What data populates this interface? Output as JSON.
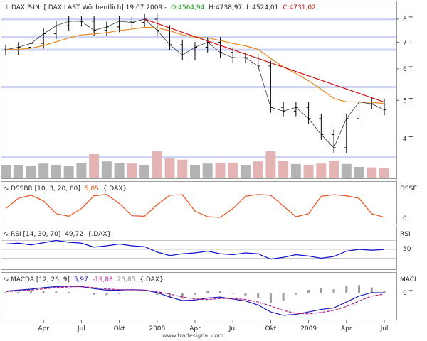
{
  "colors": {
    "price": "#000000",
    "sma": "#e8891e",
    "trend": "#cc1111",
    "ref_band": "#cfd3f5",
    "volume": "#b4b4b4",
    "volume_down": "#e4b4b4",
    "dssbr": "#e8501e",
    "rsi": "#1111cc",
    "macd_line": "#1a1ab4",
    "macd_signal": "#b41a8c",
    "macd_hist": "#9a9a9a",
    "header_open": "#1a9a1a",
    "header_close": "#cc1111",
    "header_dssbr_val": "#e8501e",
    "header_macd_val1": "#1a1ab4",
    "header_macd_val2": "#b41a8c",
    "header_macd_val3": "#888888"
  },
  "header": {
    "main": {
      "name": "DAX P-IN. [.DAX LAST Wöchentlich] 19.07.2009 -",
      "open": "O:4564,94",
      "high": "H:4738,97",
      "low": "L:4524,01",
      "close": "C:4731,02"
    },
    "dssbr": {
      "name": "DSSBR [10, 3, 20, 80]",
      "value": "5,85",
      "symbol": "{.DAX}"
    },
    "rsi": {
      "name": "RSI [14, 30, 70]",
      "value": "49,72",
      "symbol": "{.DAX}"
    },
    "macd": {
      "name": "MACDA [12, 26, 9]",
      "v1": "5,97",
      "v2": "-19,88",
      "v3": "25,85",
      "symbol": "{.DAX}"
    }
  },
  "right_labels": {
    "price_ticks": [
      "8 T",
      "7 T",
      "6 T",
      "5 T",
      "4 T"
    ],
    "dssbr": [
      "DSSE",
      "0"
    ],
    "rsi": [
      "RSI",
      "50"
    ],
    "macd": [
      "MACI",
      "0 T"
    ]
  },
  "x_axis": {
    "labels": [
      "Apr",
      "Jul",
      "Okt",
      "2008",
      "Apr",
      "Jul",
      "Okt",
      "2009",
      "Apr",
      "Jul"
    ]
  },
  "watermark": "www.tradesignal.com",
  "chart_data": [
    {
      "type": "line",
      "title": "DAX P-IN. [.DAX LAST Wöchentlich] 19.07.2009",
      "x": [
        "2007-01",
        "2007-02",
        "2007-03",
        "2007-04",
        "2007-05",
        "2007-06",
        "2007-07",
        "2007-08",
        "2007-09",
        "2007-10",
        "2007-11",
        "2007-12",
        "2008-01",
        "2008-02",
        "2008-03",
        "2008-04",
        "2008-05",
        "2008-06",
        "2008-07",
        "2008-08",
        "2008-09",
        "2008-10",
        "2008-11",
        "2008-12",
        "2009-01",
        "2009-02",
        "2009-03",
        "2009-04",
        "2009-05",
        "2009-06",
        "2009-07"
      ],
      "series": [
        {
          "name": "DAX",
          "values": [
            6700,
            6800,
            6950,
            7350,
            7700,
            7900,
            7900,
            7500,
            7650,
            7900,
            7850,
            8000,
            7500,
            6900,
            6500,
            6800,
            7000,
            6600,
            6400,
            6400,
            6100,
            4800,
            4700,
            4800,
            4500,
            4100,
            3800,
            4500,
            4950,
            4900,
            4731
          ]
        }
      ],
      "volume": [
        0.3,
        0.3,
        0.28,
        0.33,
        0.3,
        0.28,
        0.35,
        0.55,
        0.38,
        0.35,
        0.33,
        0.3,
        0.62,
        0.45,
        0.42,
        0.3,
        0.33,
        0.34,
        0.35,
        0.3,
        0.38,
        0.62,
        0.4,
        0.32,
        0.3,
        0.33,
        0.4,
        0.32,
        0.25,
        0.24,
        0.22
      ],
      "ylim": [
        3500,
        8300
      ],
      "y_log": true,
      "ticks": [
        8000,
        7000,
        6000,
        5000,
        4000
      ],
      "ref_levels": [
        8000,
        7200,
        6700,
        5400,
        3600
      ],
      "sma_label": "",
      "trend_from": [
        "2007-12",
        8000
      ],
      "trend_to": [
        "2009-07",
        4950
      ]
    },
    {
      "type": "line",
      "title": "DSSBR [10, 3, 20, 80]",
      "series": [
        {
          "name": "DSSBR",
          "values": [
            40,
            80,
            92,
            70,
            20,
            10,
            40,
            90,
            95,
            60,
            12,
            10,
            55,
            92,
            94,
            30,
            8,
            6,
            40,
            88,
            95,
            92,
            50,
            8,
            20,
            88,
            94,
            90,
            80,
            20,
            6
          ]
        }
      ],
      "ylim": [
        0,
        100
      ]
    },
    {
      "type": "line",
      "title": "RSI [14, 30, 70]",
      "series": [
        {
          "name": "RSI",
          "values": [
            62,
            64,
            60,
            65,
            70,
            66,
            64,
            55,
            58,
            62,
            58,
            56,
            44,
            36,
            40,
            42,
            46,
            40,
            38,
            42,
            40,
            28,
            32,
            38,
            35,
            30,
            34,
            46,
            50,
            48,
            49.72
          ]
        }
      ],
      "ylim": [
        10,
        90
      ],
      "levels": [
        30,
        50,
        70
      ]
    },
    {
      "type": "line",
      "title": "MACDA [12, 26, 9]",
      "series": [
        {
          "name": "MACD",
          "values": [
            40,
            60,
            80,
            110,
            130,
            140,
            130,
            90,
            60,
            60,
            70,
            60,
            10,
            -80,
            -150,
            -140,
            -100,
            -80,
            -120,
            -160,
            -240,
            -380,
            -450,
            -430,
            -380,
            -330,
            -300,
            -180,
            -60,
            10,
            5.97
          ]
        },
        {
          "name": "Signal",
          "values": [
            30,
            45,
            60,
            85,
            110,
            125,
            130,
            110,
            85,
            70,
            65,
            60,
            30,
            -20,
            -80,
            -120,
            -130,
            -110,
            -110,
            -130,
            -180,
            -260,
            -350,
            -410,
            -420,
            -390,
            -350,
            -270,
            -160,
            -60,
            -19.88
          ]
        }
      ],
      "ylim": [
        -480,
        180
      ]
    }
  ]
}
